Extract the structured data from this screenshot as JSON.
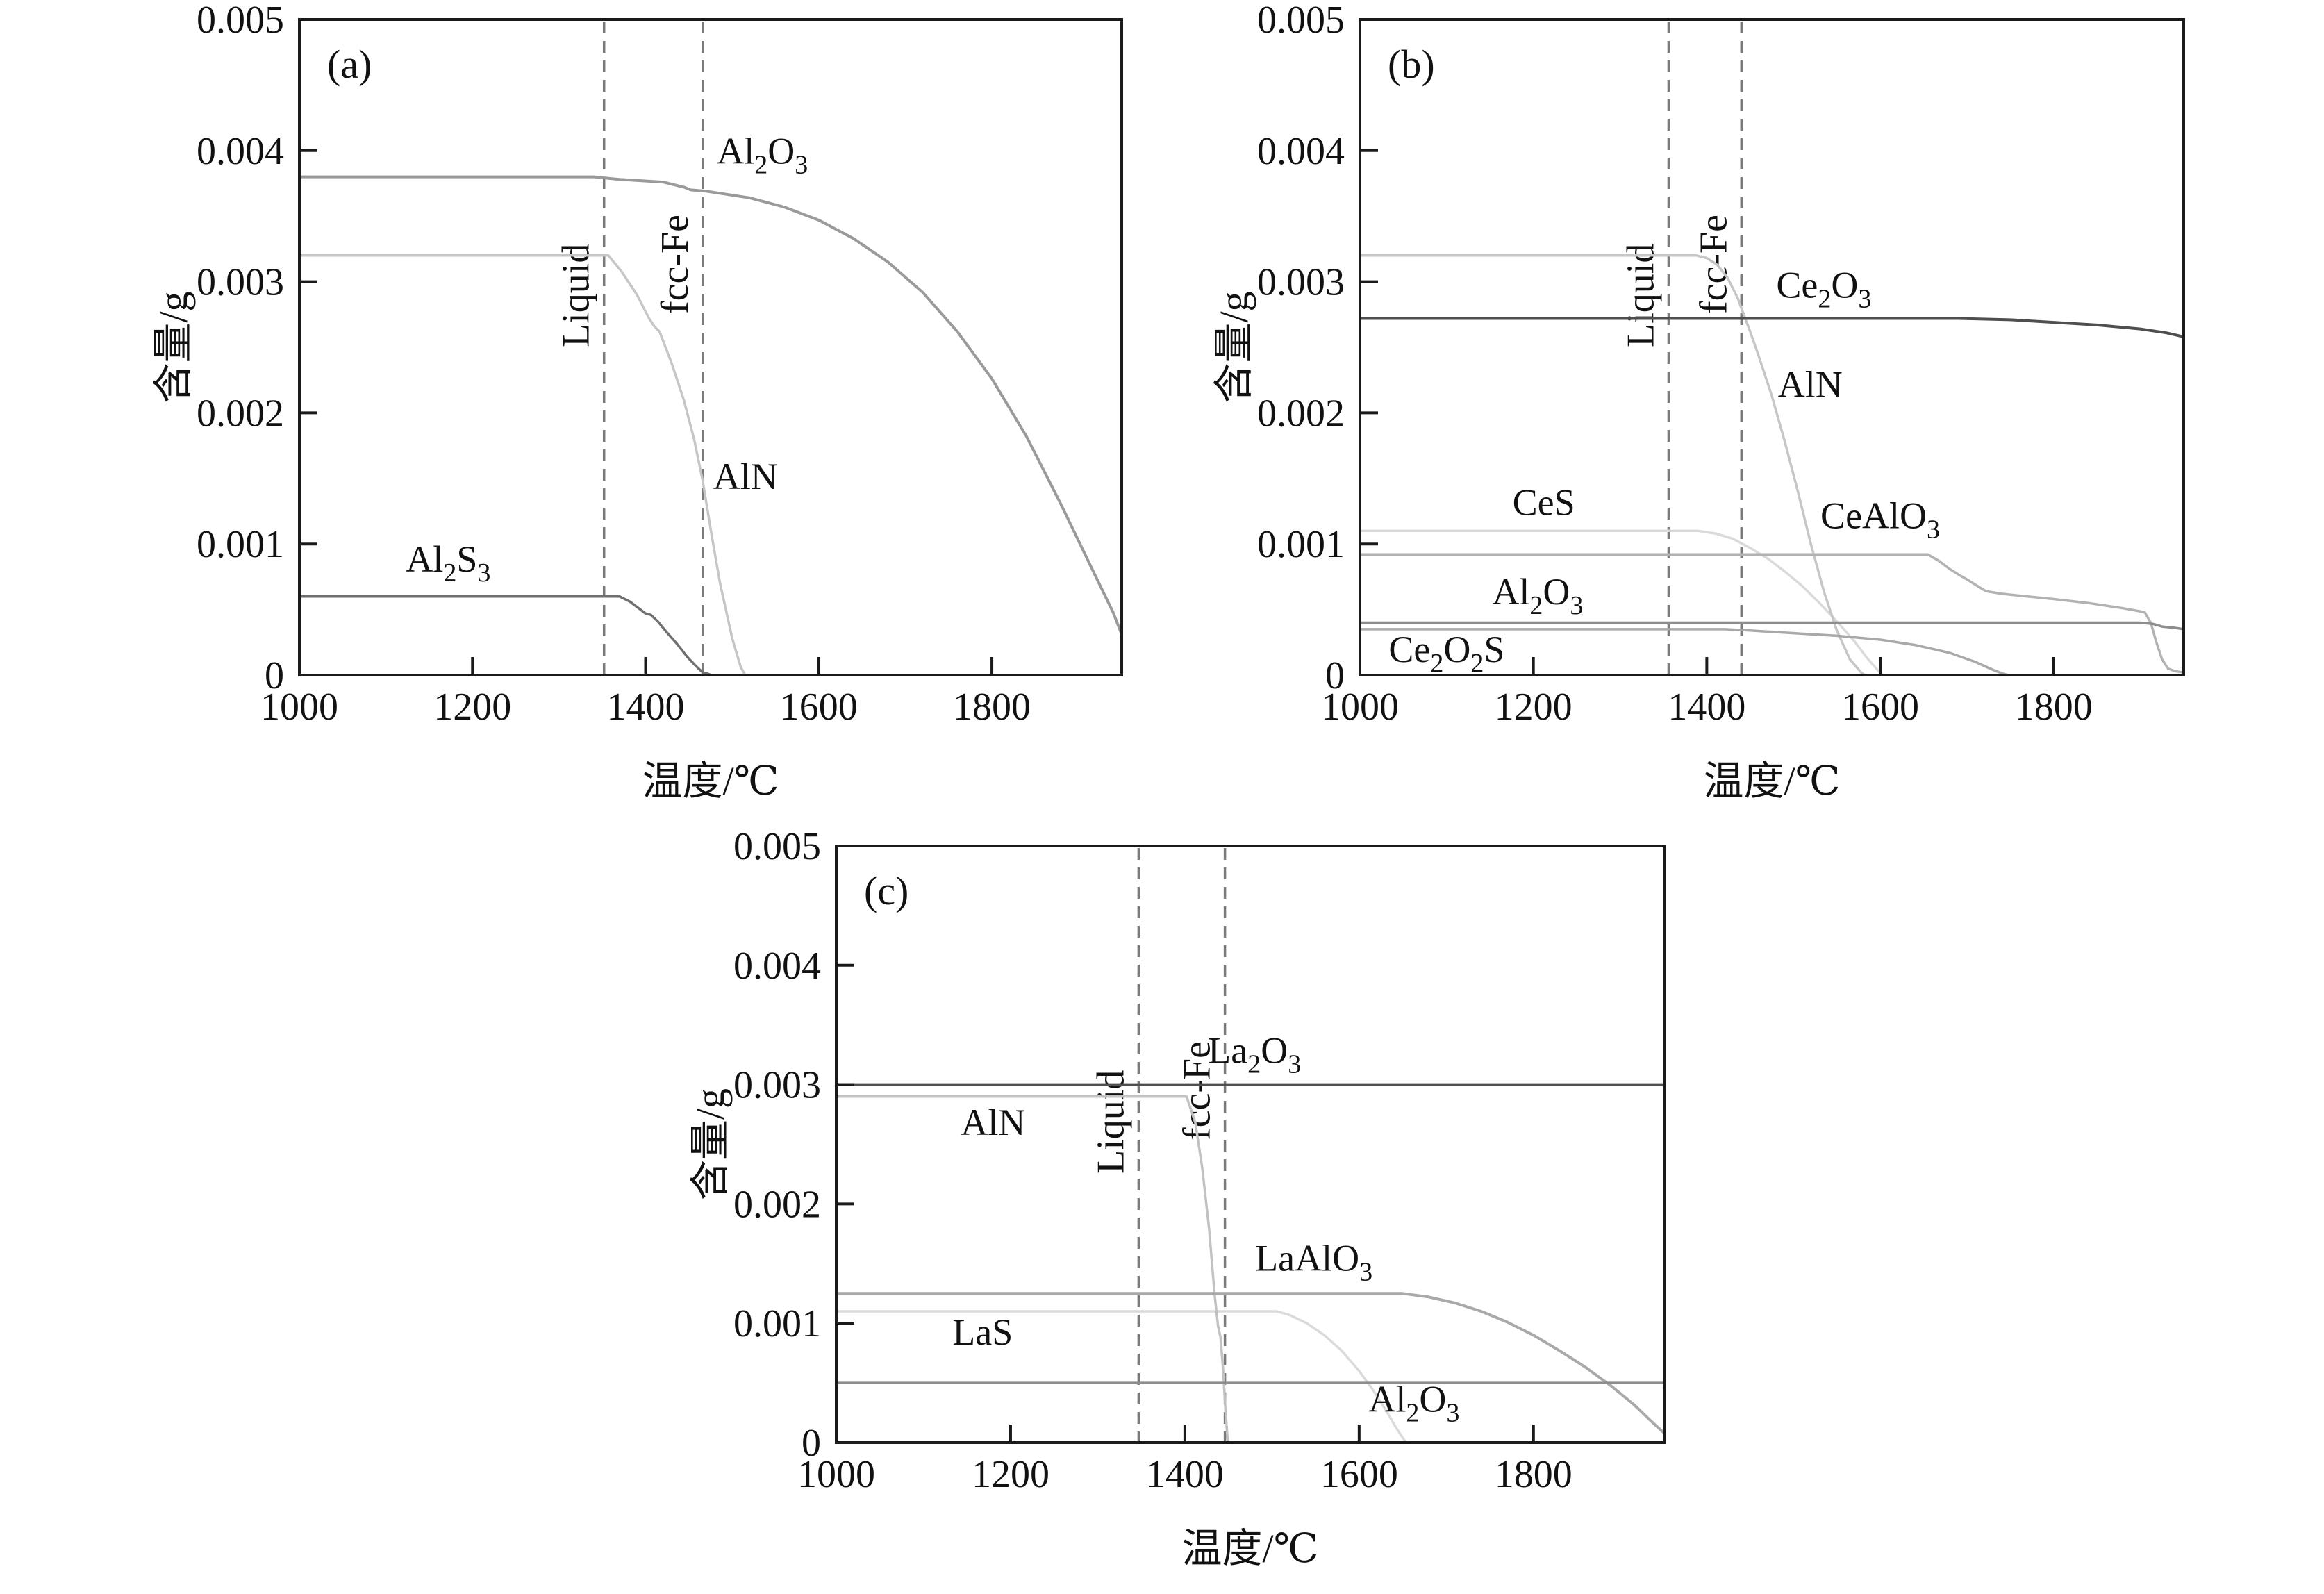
{
  "figure": {
    "background": "#ffffff",
    "text_color": "#111111",
    "axis_color": "#1a1a1a",
    "dash_color": "#7b7b7b"
  },
  "chart_data": [
    {
      "id": "a",
      "type": "line",
      "panel_label": "(a)",
      "xlabel": "温度/℃",
      "ylabel": "含量/g",
      "xlim": [
        1000,
        1950
      ],
      "ylim": [
        0,
        0.005
      ],
      "xticks": [
        1000,
        1200,
        1400,
        1600,
        1800
      ],
      "yticks": [
        0,
        0.001,
        0.002,
        0.003,
        0.004,
        0.005
      ],
      "ytick_labels": [
        "0",
        "0.001",
        "0.002",
        "0.003",
        "0.004",
        "0.005"
      ],
      "grid": false,
      "legend_position": "none",
      "vlines": [
        {
          "x": 1352,
          "label": "Liquid"
        },
        {
          "x": 1466,
          "label": "fcc-Fe"
        }
      ],
      "series": [
        {
          "name": "AlN",
          "color": "#c6c6c6",
          "width": 3.5,
          "label_x": 1478,
          "label_y": 0.00142,
          "anchor": "start",
          "points": [
            [
              1000,
              0.0032
            ],
            [
              1357,
              0.0032
            ],
            [
              1372,
              0.00308
            ],
            [
              1390,
              0.0029
            ],
            [
              1404,
              0.00272
            ],
            [
              1410,
              0.00266
            ],
            [
              1416,
              0.00262
            ],
            [
              1430,
              0.00238
            ],
            [
              1444,
              0.0021
            ],
            [
              1456,
              0.0018
            ],
            [
              1466,
              0.00148
            ],
            [
              1476,
              0.00108
            ],
            [
              1486,
              0.0007
            ],
            [
              1500,
              0.00028
            ],
            [
              1510,
              6e-05
            ],
            [
              1515,
              0
            ]
          ]
        },
        {
          "name": "Al2S3",
          "color": "#6f6f6f",
          "width": 3.5,
          "label_x": 1172,
          "label_y": 0.00079,
          "anchor": "middle",
          "points": [
            [
              1000,
              0.0006
            ],
            [
              1370,
              0.0006
            ],
            [
              1382,
              0.00056
            ],
            [
              1394,
              0.0005
            ],
            [
              1400,
              0.00047
            ],
            [
              1406,
              0.00046
            ],
            [
              1414,
              0.00041
            ],
            [
              1424,
              0.00033
            ],
            [
              1436,
              0.00024
            ],
            [
              1448,
              0.00014
            ],
            [
              1458,
              7e-05
            ],
            [
              1466,
              2e-05
            ],
            [
              1472,
              1e-05
            ],
            [
              1476,
              0
            ]
          ]
        },
        {
          "name": "Al2O3",
          "color": "#9a9a9a",
          "width": 4,
          "label_x": 1535,
          "label_y": 0.0039,
          "anchor": "middle",
          "points": [
            [
              1000,
              0.0038
            ],
            [
              1340,
              0.0038
            ],
            [
              1370,
              0.00378
            ],
            [
              1420,
              0.00376
            ],
            [
              1445,
              0.00372
            ],
            [
              1452,
              0.0037
            ],
            [
              1470,
              0.00369
            ],
            [
              1520,
              0.00364
            ],
            [
              1560,
              0.00357
            ],
            [
              1600,
              0.00347
            ],
            [
              1640,
              0.00333
            ],
            [
              1680,
              0.00315
            ],
            [
              1720,
              0.00292
            ],
            [
              1760,
              0.00262
            ],
            [
              1800,
              0.00226
            ],
            [
              1840,
              0.00182
            ],
            [
              1880,
              0.0013
            ],
            [
              1915,
              0.00082
            ],
            [
              1940,
              0.00048
            ],
            [
              1950,
              0.00031
            ]
          ]
        }
      ]
    },
    {
      "id": "b",
      "type": "line",
      "panel_label": "(b)",
      "xlabel": "温度/℃",
      "ylabel": "含量/g",
      "xlim": [
        1000,
        1950
      ],
      "ylim": [
        0,
        0.005
      ],
      "xticks": [
        1000,
        1200,
        1400,
        1600,
        1800
      ],
      "yticks": [
        0,
        0.001,
        0.002,
        0.003,
        0.004,
        0.005
      ],
      "ytick_labels": [
        "0",
        "0.001",
        "0.002",
        "0.003",
        "0.004",
        "0.005"
      ],
      "grid": false,
      "legend_position": "none",
      "vlines": [
        {
          "x": 1356,
          "label": "Liquid"
        },
        {
          "x": 1440,
          "label": "fcc-Fe"
        }
      ],
      "series": [
        {
          "name": "CeS",
          "color": "#dadada",
          "width": 3.5,
          "label_x": 1212,
          "label_y": 0.00122,
          "anchor": "middle",
          "points": [
            [
              1000,
              0.0011
            ],
            [
              1390,
              0.0011
            ],
            [
              1410,
              0.00108
            ],
            [
              1430,
              0.00104
            ],
            [
              1450,
              0.00097
            ],
            [
              1470,
              0.00089
            ],
            [
              1490,
              0.00079
            ],
            [
              1510,
              0.00068
            ],
            [
              1530,
              0.00055
            ],
            [
              1550,
              0.00041
            ],
            [
              1570,
              0.00026
            ],
            [
              1585,
              0.00013
            ],
            [
              1598,
              3e-05
            ],
            [
              1603,
              0
            ]
          ]
        },
        {
          "name": "AlN",
          "color": "#c6c6c6",
          "width": 3.5,
          "label_x": 1482,
          "label_y": 0.00212,
          "anchor": "start",
          "points": [
            [
              1000,
              0.0032
            ],
            [
              1388,
              0.0032
            ],
            [
              1400,
              0.00318
            ],
            [
              1412,
              0.00313
            ],
            [
              1424,
              0.00303
            ],
            [
              1436,
              0.00287
            ],
            [
              1442,
              0.00276
            ],
            [
              1450,
              0.00262
            ],
            [
              1460,
              0.00243
            ],
            [
              1475,
              0.00213
            ],
            [
              1490,
              0.00178
            ],
            [
              1505,
              0.0014
            ],
            [
              1520,
              0.001
            ],
            [
              1535,
              0.00064
            ],
            [
              1550,
              0.00034
            ],
            [
              1565,
              0.00012
            ],
            [
              1578,
              2e-05
            ],
            [
              1582,
              0
            ]
          ]
        },
        {
          "name": "Ce2O2S",
          "color": "#a9a9a9",
          "width": 3.5,
          "label_x": 1100,
          "label_y": 0.0001,
          "anchor": "middle",
          "points": [
            [
              1000,
              0.00035
            ],
            [
              1420,
              0.00035
            ],
            [
              1450,
              0.00034
            ],
            [
              1500,
              0.00032
            ],
            [
              1550,
              0.0003
            ],
            [
              1600,
              0.00027
            ],
            [
              1640,
              0.00023
            ],
            [
              1680,
              0.00017
            ],
            [
              1710,
              0.0001
            ],
            [
              1730,
              4e-05
            ],
            [
              1742,
              1e-05
            ],
            [
              1748,
              0
            ]
          ]
        },
        {
          "name": "CeAlO3",
          "color": "#b2b2b2",
          "width": 3.5,
          "label_x": 1600,
          "label_y": 0.00112,
          "anchor": "middle",
          "points": [
            [
              1000,
              0.00092
            ],
            [
              1655,
              0.00092
            ],
            [
              1668,
              0.00087
            ],
            [
              1680,
              0.00081
            ],
            [
              1692,
              0.00076
            ],
            [
              1700,
              0.00073
            ],
            [
              1712,
              0.00068
            ],
            [
              1722,
              0.00064
            ],
            [
              1740,
              0.00062
            ],
            [
              1770,
              0.0006
            ],
            [
              1800,
              0.00058
            ],
            [
              1840,
              0.00055
            ],
            [
              1880,
              0.00051
            ],
            [
              1905,
              0.00048
            ],
            [
              1912,
              0.0004
            ],
            [
              1918,
              0.00026
            ],
            [
              1925,
              0.00012
            ],
            [
              1932,
              5e-05
            ],
            [
              1940,
              3e-05
            ],
            [
              1950,
              2e-05
            ]
          ]
        },
        {
          "name": "Al2O3",
          "color": "#8d8d8d",
          "width": 3.5,
          "label_x": 1205,
          "label_y": 0.00054,
          "anchor": "middle",
          "points": [
            [
              1000,
              0.0004
            ],
            [
              1900,
              0.0004
            ],
            [
              1915,
              0.00039
            ],
            [
              1925,
              0.00037
            ],
            [
              1940,
              0.00036
            ],
            [
              1950,
              0.00035
            ]
          ]
        },
        {
          "name": "Ce2O3",
          "color": "#4f4f4f",
          "width": 4,
          "label_x": 1535,
          "label_y": 0.00288,
          "anchor": "middle",
          "points": [
            [
              1000,
              0.00272
            ],
            [
              1690,
              0.00272
            ],
            [
              1750,
              0.00271
            ],
            [
              1800,
              0.00269
            ],
            [
              1850,
              0.00267
            ],
            [
              1900,
              0.00264
            ],
            [
              1930,
              0.00261
            ],
            [
              1950,
              0.00258
            ]
          ]
        }
      ]
    },
    {
      "id": "c",
      "type": "line",
      "panel_label": "(c)",
      "xlabel": "温度/℃",
      "ylabel": "含量/g",
      "xlim": [
        1000,
        1950
      ],
      "ylim": [
        0,
        0.005
      ],
      "xticks": [
        1000,
        1200,
        1400,
        1600,
        1800
      ],
      "yticks": [
        0,
        0.001,
        0.002,
        0.003,
        0.004,
        0.005
      ],
      "ytick_labels": [
        "0",
        "0.001",
        "0.002",
        "0.003",
        "0.004",
        "0.005"
      ],
      "grid": false,
      "legend_position": "none",
      "vlines": [
        {
          "x": 1347,
          "label": "Liquid"
        },
        {
          "x": 1446,
          "label": "fcc-Fe"
        }
      ],
      "series": [
        {
          "name": "LaS",
          "color": "#dadada",
          "width": 3.5,
          "label_x": 1168,
          "label_y": 0.00082,
          "anchor": "middle",
          "points": [
            [
              1000,
              0.0011
            ],
            [
              1505,
              0.0011
            ],
            [
              1520,
              0.00107
            ],
            [
              1540,
              0.001
            ],
            [
              1560,
              0.0009
            ],
            [
              1580,
              0.00077
            ],
            [
              1600,
              0.0006
            ],
            [
              1615,
              0.00045
            ],
            [
              1630,
              0.00028
            ],
            [
              1642,
              0.00013
            ],
            [
              1650,
              4e-05
            ],
            [
              1654,
              0
            ]
          ]
        },
        {
          "name": "AlN",
          "color": "#c2c2c2",
          "width": 3.5,
          "label_x": 1180,
          "label_y": 0.00258,
          "anchor": "middle",
          "points": [
            [
              1000,
              0.0029
            ],
            [
              1402,
              0.0029
            ],
            [
              1412,
              0.00268
            ],
            [
              1420,
              0.0023
            ],
            [
              1428,
              0.00178
            ],
            [
              1434,
              0.00125
            ],
            [
              1438,
              0.00098
            ],
            [
              1441,
              0.00088
            ],
            [
              1444,
              0.0006
            ],
            [
              1447,
              0.00022
            ],
            [
              1449,
              4e-05
            ],
            [
              1450,
              0
            ]
          ]
        },
        {
          "name": "LaAlO3",
          "color": "#a9a9a9",
          "width": 4,
          "label_x": 1548,
          "label_y": 0.00144,
          "anchor": "middle",
          "points": [
            [
              1000,
              0.00125
            ],
            [
              1650,
              0.00125
            ],
            [
              1680,
              0.00122
            ],
            [
              1710,
              0.00117
            ],
            [
              1740,
              0.0011
            ],
            [
              1770,
              0.00101
            ],
            [
              1800,
              0.0009
            ],
            [
              1830,
              0.00077
            ],
            [
              1860,
              0.00063
            ],
            [
              1890,
              0.00047
            ],
            [
              1915,
              0.00032
            ],
            [
              1935,
              0.00018
            ],
            [
              1950,
              8e-05
            ]
          ]
        },
        {
          "name": "Al2O3",
          "color": "#8d8d8d",
          "width": 3.5,
          "label_x": 1663,
          "label_y": 0.00026,
          "anchor": "middle",
          "points": [
            [
              1000,
              0.0005
            ],
            [
              1950,
              0.0005
            ]
          ]
        },
        {
          "name": "La2O3",
          "color": "#4f4f4f",
          "width": 4,
          "label_x": 1480,
          "label_y": 0.00318,
          "anchor": "middle",
          "points": [
            [
              1000,
              0.003
            ],
            [
              1950,
              0.003
            ]
          ]
        }
      ]
    }
  ]
}
